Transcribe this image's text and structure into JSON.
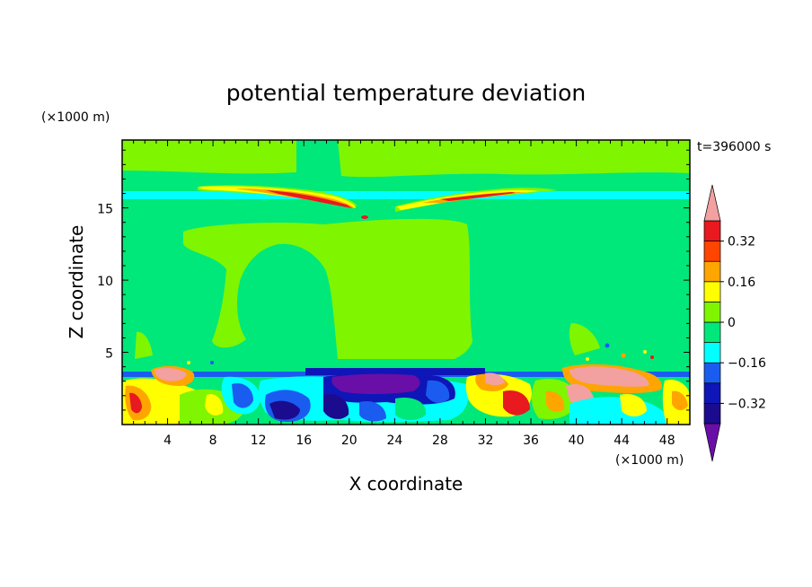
{
  "chart_data": {
    "type": "heatmap",
    "title": "potential temperature deviation",
    "xlabel": "X coordinate",
    "ylabel": "Z coordinate",
    "x_unit": "(×1000 m)",
    "y_unit": "(×1000 m)",
    "time_label": "t=396000 s",
    "xlim": [
      0,
      50
    ],
    "ylim": [
      0,
      19.7
    ],
    "x_ticks": [
      4,
      8,
      12,
      16,
      20,
      24,
      28,
      32,
      36,
      40,
      44,
      48
    ],
    "y_ticks": [
      5,
      10,
      15
    ],
    "colorbar": {
      "levels": [
        -0.4,
        -0.32,
        -0.24,
        -0.16,
        -0.08,
        0,
        0.08,
        0.16,
        0.24,
        0.32,
        0.4
      ],
      "labeled_values": [
        "0.32",
        "0.16",
        "0",
        "−0.16",
        "−0.32"
      ],
      "colors": [
        "#6a0ea8",
        "#1b0b8e",
        "#0f16b8",
        "#1b5cf0",
        "#00ffff",
        "#00e87a",
        "#7ff500",
        "#ffff00",
        "#ffa500",
        "#ff4500",
        "#e8191f",
        "#f2a0a0"
      ]
    }
  }
}
